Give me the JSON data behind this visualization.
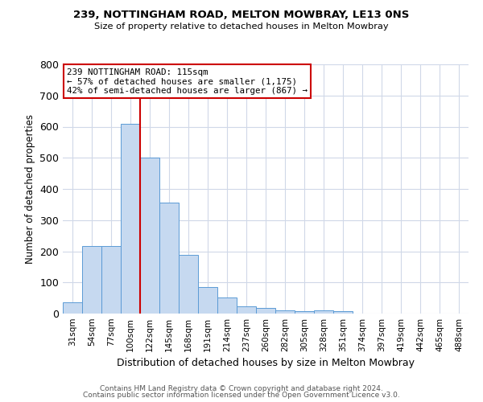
{
  "title1": "239, NOTTINGHAM ROAD, MELTON MOWBRAY, LE13 0NS",
  "title2": "Size of property relative to detached houses in Melton Mowbray",
  "xlabel": "Distribution of detached houses by size in Melton Mowbray",
  "ylabel": "Number of detached properties",
  "categories": [
    "31sqm",
    "54sqm",
    "77sqm",
    "100sqm",
    "122sqm",
    "145sqm",
    "168sqm",
    "191sqm",
    "214sqm",
    "237sqm",
    "260sqm",
    "282sqm",
    "305sqm",
    "328sqm",
    "351sqm",
    "374sqm",
    "397sqm",
    "419sqm",
    "442sqm",
    "465sqm",
    "488sqm"
  ],
  "values": [
    35,
    218,
    218,
    610,
    500,
    355,
    188,
    85,
    52,
    22,
    17,
    10,
    8,
    10,
    7,
    0,
    0,
    0,
    0,
    0,
    0
  ],
  "bar_color": "#c6d9f0",
  "bar_edge_color": "#5b9bd5",
  "red_line_index": 3.5,
  "annotation_text": "239 NOTTINGHAM ROAD: 115sqm\n← 57% of detached houses are smaller (1,175)\n42% of semi-detached houses are larger (867) →",
  "annotation_box_color": "#ffffff",
  "annotation_box_edge": "#cc0000",
  "red_line_color": "#cc0000",
  "ylim": [
    0,
    800
  ],
  "yticks": [
    0,
    100,
    200,
    300,
    400,
    500,
    600,
    700,
    800
  ],
  "footer1": "Contains HM Land Registry data © Crown copyright and database right 2024.",
  "footer2": "Contains public sector information licensed under the Open Government Licence v3.0.",
  "background_color": "#ffffff",
  "grid_color": "#d0d8e8"
}
